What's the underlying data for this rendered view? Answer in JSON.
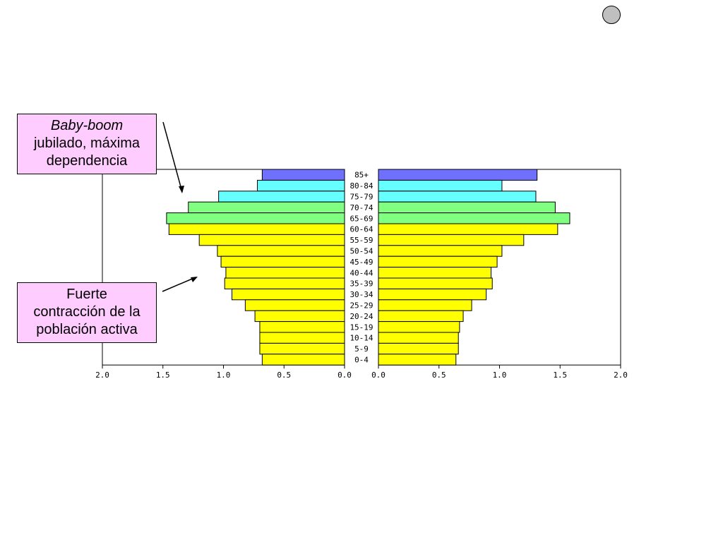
{
  "chart_data": {
    "type": "bar",
    "subtype": "population-pyramid",
    "categories": [
      "85+",
      "80-84",
      "75-79",
      "70-74",
      "65-69",
      "60-64",
      "55-59",
      "50-54",
      "45-49",
      "40-44",
      "35-39",
      "30-34",
      "25-29",
      "20-24",
      "15-19",
      "10-14",
      "5-9",
      "0-4"
    ],
    "series": [
      {
        "side": "left",
        "values": [
          0.68,
          0.72,
          1.04,
          1.29,
          1.47,
          1.45,
          1.2,
          1.05,
          1.02,
          0.98,
          0.99,
          0.93,
          0.82,
          0.74,
          0.7,
          0.7,
          0.7,
          0.68
        ],
        "colors": [
          "#7070ff",
          "#66ffff",
          "#66ffff",
          "#80ff80",
          "#80ff80",
          "#ffff00",
          "#ffff00",
          "#ffff00",
          "#ffff00",
          "#ffff00",
          "#ffff00",
          "#ffff00",
          "#ffff00",
          "#ffff00",
          "#ffff00",
          "#ffff00",
          "#ffff00",
          "#ffff00"
        ]
      },
      {
        "side": "right",
        "values": [
          1.31,
          1.02,
          1.3,
          1.46,
          1.58,
          1.48,
          1.2,
          1.02,
          0.98,
          0.93,
          0.94,
          0.89,
          0.77,
          0.7,
          0.67,
          0.66,
          0.66,
          0.64
        ],
        "colors": [
          "#7070ff",
          "#66ffff",
          "#66ffff",
          "#80ff80",
          "#80ff80",
          "#ffff00",
          "#ffff00",
          "#ffff00",
          "#ffff00",
          "#ffff00",
          "#ffff00",
          "#ffff00",
          "#ffff00",
          "#ffff00",
          "#ffff00",
          "#ffff00",
          "#ffff00",
          "#ffff00"
        ]
      }
    ],
    "x_ticks": [
      "0.0",
      "0.5",
      "1.0",
      "1.5",
      "2.0"
    ],
    "xlim": [
      0,
      2.0
    ],
    "title": "",
    "xlabel": "",
    "ylabel": ""
  },
  "callouts": [
    {
      "lines": [
        "Baby-boom",
        "jubilado, máxima",
        "dependencia"
      ]
    },
    {
      "lines": [
        "Fuerte",
        "contracción de la",
        "población activa"
      ]
    }
  ]
}
